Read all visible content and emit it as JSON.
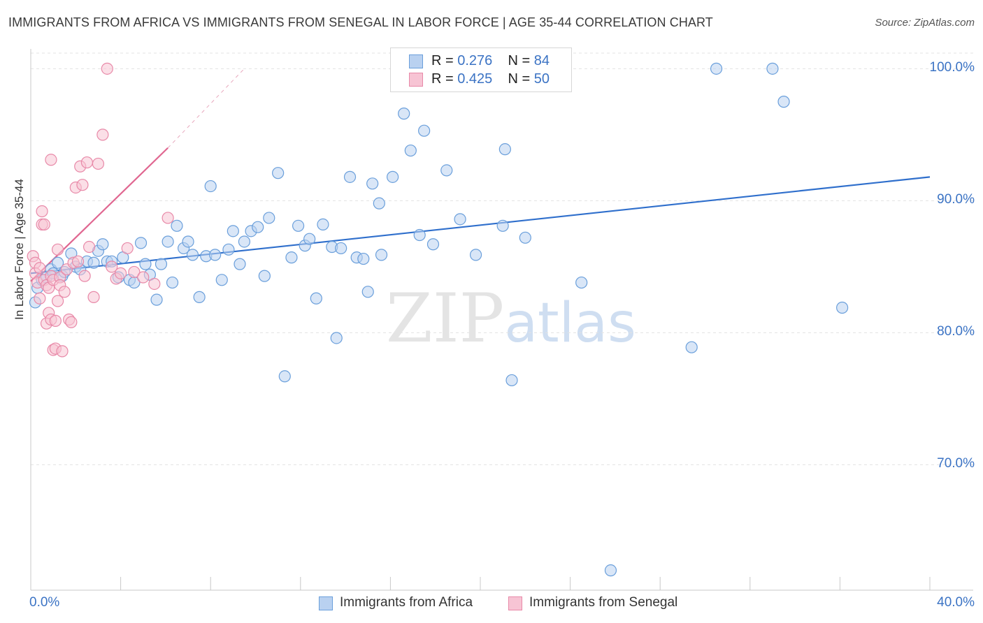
{
  "chart_data": {
    "type": "scatter",
    "title": "IMMIGRANTS FROM AFRICA VS IMMIGRANTS FROM SENEGAL IN LABOR FORCE | AGE 35-44 CORRELATION CHART",
    "source": "Source: ZipAtlas.com",
    "ylabel": "In Labor Force | Age 35-44",
    "xlim": [
      0,
      40
    ],
    "ylim": [
      60.5,
      101.5
    ],
    "x_tick_labels": [
      "0.0%",
      "40.0%"
    ],
    "y_ticks": [
      {
        "value": 100,
        "label": "100.0%"
      },
      {
        "value": 90,
        "label": "90.0%"
      },
      {
        "value": 80,
        "label": "80.0%"
      },
      {
        "value": 70,
        "label": "70.0%"
      }
    ],
    "grid": true,
    "watermark": {
      "zip": "ZIP",
      "atlas": "atlas"
    },
    "legend_stats": [
      {
        "r_label": "R =",
        "r_value": "0.276",
        "n_label": "N =",
        "n_value": "84"
      },
      {
        "r_label": "R =",
        "r_value": "0.425",
        "n_label": "N =",
        "n_value": "50"
      }
    ],
    "series": [
      {
        "name": "Immigrants from Africa",
        "color": "#6a9fdb",
        "fill": "#b9d1f0",
        "trend": {
          "x": [
            0.0,
            40.0
          ],
          "y": [
            84.5,
            91.8
          ],
          "color": "#2f6fcc"
        },
        "points": [
          [
            0.3,
            83.4
          ],
          [
            0.5,
            84.0
          ],
          [
            0.7,
            84.2
          ],
          [
            0.9,
            84.8
          ],
          [
            1.0,
            84.5
          ],
          [
            1.2,
            85.3
          ],
          [
            1.4,
            84.3
          ],
          [
            1.5,
            84.6
          ],
          [
            1.8,
            86.0
          ],
          [
            2.0,
            85.0
          ],
          [
            2.2,
            84.8
          ],
          [
            2.5,
            85.4
          ],
          [
            2.8,
            85.3
          ],
          [
            3.0,
            86.2
          ],
          [
            3.2,
            86.7
          ],
          [
            3.4,
            85.4
          ],
          [
            3.6,
            85.4
          ],
          [
            3.9,
            84.2
          ],
          [
            4.1,
            85.7
          ],
          [
            4.4,
            84.0
          ],
          [
            4.6,
            83.8
          ],
          [
            4.9,
            86.8
          ],
          [
            5.1,
            85.2
          ],
          [
            5.3,
            84.4
          ],
          [
            5.6,
            82.5
          ],
          [
            5.8,
            85.2
          ],
          [
            6.1,
            86.9
          ],
          [
            6.3,
            83.8
          ],
          [
            6.5,
            88.1
          ],
          [
            6.8,
            86.4
          ],
          [
            7.0,
            86.9
          ],
          [
            7.2,
            85.9
          ],
          [
            7.5,
            82.7
          ],
          [
            7.8,
            85.8
          ],
          [
            8.0,
            91.1
          ],
          [
            8.2,
            85.9
          ],
          [
            8.5,
            84.0
          ],
          [
            8.8,
            86.3
          ],
          [
            9.0,
            87.7
          ],
          [
            9.3,
            85.2
          ],
          [
            9.5,
            86.9
          ],
          [
            9.8,
            87.7
          ],
          [
            10.1,
            88.0
          ],
          [
            10.4,
            84.3
          ],
          [
            10.6,
            88.7
          ],
          [
            11.0,
            92.1
          ],
          [
            11.3,
            76.7
          ],
          [
            11.6,
            85.7
          ],
          [
            11.9,
            88.1
          ],
          [
            12.2,
            86.6
          ],
          [
            12.4,
            87.1
          ],
          [
            12.7,
            82.6
          ],
          [
            13.0,
            88.2
          ],
          [
            13.4,
            86.5
          ],
          [
            13.6,
            79.6
          ],
          [
            13.8,
            86.4
          ],
          [
            14.2,
            91.8
          ],
          [
            14.5,
            85.7
          ],
          [
            14.8,
            85.6
          ],
          [
            15.0,
            83.1
          ],
          [
            15.2,
            91.3
          ],
          [
            15.5,
            89.8
          ],
          [
            15.6,
            85.9
          ],
          [
            16.1,
            91.8
          ],
          [
            16.6,
            96.6
          ],
          [
            16.9,
            93.8
          ],
          [
            17.3,
            87.4
          ],
          [
            17.5,
            95.3
          ],
          [
            17.9,
            86.7
          ],
          [
            18.5,
            92.3
          ],
          [
            19.1,
            88.6
          ],
          [
            19.8,
            85.9
          ],
          [
            21.0,
            88.1
          ],
          [
            21.1,
            93.9
          ],
          [
            21.4,
            76.4
          ],
          [
            22.0,
            87.2
          ],
          [
            24.5,
            83.8
          ],
          [
            25.8,
            62.0
          ],
          [
            29.4,
            78.9
          ],
          [
            30.5,
            100.0
          ],
          [
            33.0,
            100.0
          ],
          [
            33.5,
            97.5
          ],
          [
            36.1,
            81.9
          ],
          [
            0.2,
            82.3
          ]
        ]
      },
      {
        "name": "Immigrants from Senegal",
        "color": "#e889a8",
        "fill": "#f7c4d4",
        "trend": {
          "x": [
            0.0,
            6.1
          ],
          "y": [
            83.9,
            94.0
          ],
          "color": "#e06690"
        },
        "trend_ext": {
          "x": [
            6.1,
            9.5
          ],
          "y": [
            94.0,
            100.0
          ]
        },
        "points": [
          [
            0.1,
            85.8
          ],
          [
            0.2,
            85.3
          ],
          [
            0.2,
            84.5
          ],
          [
            0.3,
            83.8
          ],
          [
            0.4,
            84.9
          ],
          [
            0.4,
            82.6
          ],
          [
            0.5,
            88.2
          ],
          [
            0.5,
            89.2
          ],
          [
            0.6,
            88.2
          ],
          [
            0.6,
            84.0
          ],
          [
            0.7,
            83.6
          ],
          [
            0.7,
            80.7
          ],
          [
            0.8,
            83.4
          ],
          [
            0.8,
            81.5
          ],
          [
            0.9,
            81.0
          ],
          [
            0.9,
            84.3
          ],
          [
            0.9,
            93.1
          ],
          [
            1.0,
            84.0
          ],
          [
            1.0,
            78.7
          ],
          [
            1.1,
            78.8
          ],
          [
            1.1,
            80.9
          ],
          [
            1.2,
            86.3
          ],
          [
            1.2,
            82.4
          ],
          [
            1.3,
            84.2
          ],
          [
            1.3,
            83.6
          ],
          [
            1.4,
            78.6
          ],
          [
            1.5,
            83.1
          ],
          [
            1.6,
            84.8
          ],
          [
            1.7,
            81.0
          ],
          [
            1.8,
            80.8
          ],
          [
            1.9,
            85.3
          ],
          [
            2.0,
            91.0
          ],
          [
            2.1,
            85.4
          ],
          [
            2.2,
            92.6
          ],
          [
            2.3,
            91.2
          ],
          [
            2.4,
            84.3
          ],
          [
            2.5,
            92.9
          ],
          [
            2.6,
            86.5
          ],
          [
            2.8,
            82.7
          ],
          [
            3.0,
            92.8
          ],
          [
            3.2,
            95.0
          ],
          [
            3.4,
            100.0
          ],
          [
            3.6,
            85.0
          ],
          [
            3.8,
            84.1
          ],
          [
            4.0,
            84.5
          ],
          [
            4.3,
            86.4
          ],
          [
            4.6,
            84.6
          ],
          [
            5.0,
            84.2
          ],
          [
            5.5,
            83.7
          ],
          [
            6.1,
            88.7
          ]
        ]
      }
    ]
  },
  "legend": {
    "africa_label": "Immigrants from Africa",
    "senegal_label": "Immigrants from Senegal"
  }
}
